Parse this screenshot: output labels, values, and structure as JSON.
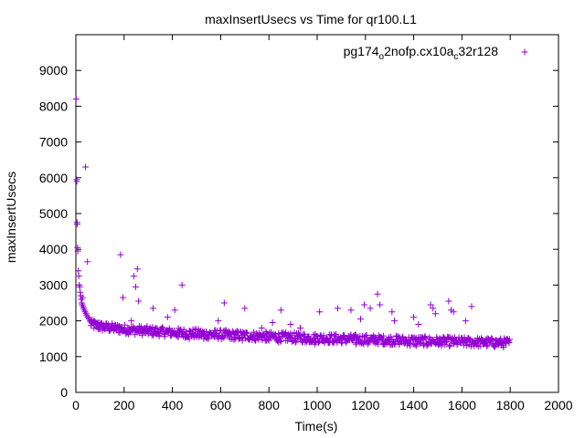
{
  "chart_data": {
    "type": "scatter",
    "title": "maxInsertUsecs vs Time for qr100.L1",
    "xlabel": "Time(s)",
    "ylabel": "maxInsertUsecs",
    "xlim": [
      0,
      2000
    ],
    "ylim": [
      0,
      10000
    ],
    "x_ticks": [
      "0",
      "200",
      "400",
      "600",
      "800",
      "1000",
      "1200",
      "1400",
      "1600",
      "1800",
      "2000"
    ],
    "y_ticks": [
      "0",
      "1000",
      "2000",
      "3000",
      "4000",
      "5000",
      "6000",
      "7000",
      "8000",
      "9000"
    ],
    "grid": false,
    "legend_position": "top-right",
    "marker": "+",
    "color": "#9400d3",
    "legend": {
      "parts": [
        {
          "text": "pg174",
          "sub": false
        },
        {
          "text": "o",
          "sub": true
        },
        {
          "text": "2nofp.cx10a",
          "sub": false
        },
        {
          "text": "c",
          "sub": true
        },
        {
          "text": "32r128",
          "sub": false
        }
      ]
    },
    "series": [
      {
        "name": "pg174_o2nofp.cx10a_c32r128",
        "points": [
          [
            1,
            8200
          ],
          [
            3,
            5950
          ],
          [
            4,
            5900
          ],
          [
            5,
            4750
          ],
          [
            6,
            4700
          ],
          [
            7,
            4050
          ],
          [
            8,
            3950
          ],
          [
            10,
            3400
          ],
          [
            12,
            3250
          ],
          [
            14,
            3000
          ],
          [
            16,
            2950
          ],
          [
            18,
            2800
          ],
          [
            20,
            2700
          ],
          [
            22,
            2600
          ],
          [
            24,
            2500
          ],
          [
            26,
            2450
          ],
          [
            28,
            2650
          ],
          [
            30,
            2400
          ],
          [
            32,
            2350
          ],
          [
            35,
            2300
          ],
          [
            38,
            2250
          ],
          [
            40,
            6300
          ],
          [
            42,
            2200
          ],
          [
            45,
            2150
          ],
          [
            48,
            3650
          ],
          [
            50,
            2100
          ],
          [
            55,
            2050
          ],
          [
            60,
            2000
          ],
          [
            65,
            1950
          ],
          [
            70,
            1950
          ],
          [
            75,
            2000
          ],
          [
            85,
            1900
          ],
          [
            95,
            1950
          ],
          [
            105,
            1900
          ],
          [
            115,
            1850
          ],
          [
            125,
            1900
          ],
          [
            140,
            1800
          ],
          [
            150,
            1850
          ],
          [
            160,
            1800
          ],
          [
            170,
            1750
          ],
          [
            180,
            1850
          ],
          [
            185,
            3850
          ],
          [
            195,
            2650
          ],
          [
            200,
            1750
          ],
          [
            210,
            1700
          ],
          [
            220,
            1800
          ],
          [
            230,
            2000
          ],
          [
            240,
            3250
          ],
          [
            248,
            2950
          ],
          [
            255,
            3450
          ],
          [
            260,
            2550
          ],
          [
            265,
            1750
          ],
          [
            275,
            1650
          ],
          [
            290,
            1700
          ],
          [
            300,
            1650
          ],
          [
            310,
            1700
          ],
          [
            320,
            2350
          ],
          [
            330,
            1650
          ],
          [
            345,
            1600
          ],
          [
            360,
            1700
          ],
          [
            380,
            2100
          ],
          [
            395,
            1600
          ],
          [
            410,
            2300
          ],
          [
            425,
            1550
          ],
          [
            440,
            3000
          ],
          [
            455,
            1550
          ],
          [
            470,
            1500
          ],
          [
            490,
            1600
          ],
          [
            510,
            1550
          ],
          [
            530,
            1500
          ],
          [
            550,
            1500
          ],
          [
            575,
            1550
          ],
          [
            590,
            2000
          ],
          [
            615,
            2500
          ],
          [
            640,
            1500
          ],
          [
            660,
            1500
          ],
          [
            690,
            1450
          ],
          [
            700,
            2350
          ],
          [
            720,
            1500
          ],
          [
            745,
            1450
          ],
          [
            770,
            1800
          ],
          [
            790,
            1450
          ],
          [
            800,
            1450
          ],
          [
            815,
            1950
          ],
          [
            840,
            1400
          ],
          [
            850,
            2300
          ],
          [
            870,
            1450
          ],
          [
            890,
            1900
          ],
          [
            910,
            1400
          ],
          [
            930,
            1800
          ],
          [
            950,
            1400
          ],
          [
            970,
            1400
          ],
          [
            990,
            1350
          ],
          [
            1010,
            2250
          ],
          [
            1030,
            1400
          ],
          [
            1050,
            1400
          ],
          [
            1070,
            1400
          ],
          [
            1085,
            2350
          ],
          [
            1100,
            1400
          ],
          [
            1120,
            1400
          ],
          [
            1140,
            2300
          ],
          [
            1160,
            1350
          ],
          [
            1180,
            2050
          ],
          [
            1195,
            2450
          ],
          [
            1210,
            1350
          ],
          [
            1220,
            2350
          ],
          [
            1235,
            1400
          ],
          [
            1250,
            2750
          ],
          [
            1260,
            2450
          ],
          [
            1275,
            1350
          ],
          [
            1295,
            1400
          ],
          [
            1310,
            2250
          ],
          [
            1320,
            2000
          ],
          [
            1340,
            1350
          ],
          [
            1365,
            1400
          ],
          [
            1385,
            1300
          ],
          [
            1400,
            2100
          ],
          [
            1410,
            1300
          ],
          [
            1420,
            1900
          ],
          [
            1440,
            1350
          ],
          [
            1455,
            1300
          ],
          [
            1470,
            2450
          ],
          [
            1480,
            2350
          ],
          [
            1490,
            2200
          ],
          [
            1505,
            1350
          ],
          [
            1530,
            1400
          ],
          [
            1545,
            2550
          ],
          [
            1555,
            2300
          ],
          [
            1565,
            2250
          ],
          [
            1580,
            1400
          ],
          [
            1600,
            1450
          ],
          [
            1615,
            2000
          ],
          [
            1625,
            1500
          ],
          [
            1640,
            2400
          ],
          [
            1655,
            1450
          ],
          [
            1680,
            1450
          ],
          [
            1700,
            1450
          ],
          [
            1720,
            1450
          ],
          [
            1740,
            1400
          ],
          [
            1760,
            1450
          ],
          [
            1780,
            1400
          ],
          [
            1795,
            1400
          ]
        ],
        "band": {
          "x_range": [
            60,
            1800
          ],
          "points_per_unit": 0.4,
          "start_mid": 1950,
          "end_mid": 1380,
          "half_width": 130
        }
      }
    ]
  }
}
